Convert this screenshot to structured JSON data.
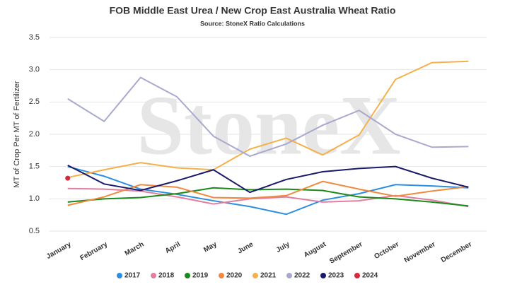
{
  "chart_data": {
    "type": "line",
    "title": "FOB Middle East Urea / New Crop East Australia Wheat Ratio",
    "subtitle": "Source: StoneX Ratio Calculations",
    "watermark": "StoneX",
    "y_label": "MT of Crop Per MT of Fertilizer",
    "categories": [
      "January",
      "February",
      "March",
      "April",
      "May",
      "June",
      "July",
      "August",
      "September",
      "October",
      "November",
      "December"
    ],
    "series": [
      {
        "name": "2017",
        "color": "#2b8ee0",
        "values": [
          1.5,
          1.35,
          1.15,
          1.07,
          0.97,
          0.88,
          0.76,
          0.98,
          1.08,
          1.22,
          1.2,
          1.17
        ]
      },
      {
        "name": "2018",
        "color": "#e07fa0",
        "values": [
          1.16,
          1.15,
          1.12,
          1.03,
          0.92,
          1.0,
          1.03,
          0.95,
          0.97,
          1.05,
          0.98,
          0.88
        ]
      },
      {
        "name": "2019",
        "color": "#1b8a1b",
        "values": [
          0.95,
          1.0,
          1.02,
          1.08,
          1.17,
          1.14,
          1.15,
          1.13,
          1.03,
          1.0,
          0.95,
          0.89
        ]
      },
      {
        "name": "2020",
        "color": "#f08a40",
        "values": [
          0.9,
          1.03,
          1.22,
          1.18,
          1.02,
          1.01,
          1.05,
          1.27,
          1.15,
          1.04,
          1.12,
          1.19
        ]
      },
      {
        "name": "2021",
        "color": "#f4b04a",
        "values": [
          1.33,
          1.45,
          1.56,
          1.48,
          1.45,
          1.77,
          1.94,
          1.68,
          1.99,
          2.85,
          3.11,
          3.13
        ]
      },
      {
        "name": "2022",
        "color": "#a9a9cf",
        "values": [
          2.55,
          2.2,
          2.88,
          2.58,
          1.97,
          1.66,
          1.85,
          2.14,
          2.37,
          2.0,
          1.8,
          1.81
        ]
      },
      {
        "name": "2023",
        "color": "#1a1a6b",
        "values": [
          1.52,
          1.23,
          1.13,
          1.28,
          1.45,
          1.1,
          1.3,
          1.42,
          1.47,
          1.5,
          1.32,
          1.18
        ]
      },
      {
        "name": "2024",
        "color": "#d4283c",
        "values": [
          1.32,
          null,
          null,
          null,
          null,
          null,
          null,
          null,
          null,
          null,
          null,
          null
        ]
      }
    ],
    "ylim": [
      0.5,
      3.5
    ],
    "yticks": [
      0.5,
      {
        "value": 1,
        "label": "1.0"
      },
      1.5,
      {
        "value": 2,
        "label": "2.0"
      },
      2.5,
      {
        "value": 3,
        "label": "3.0"
      },
      3.5
    ],
    "grid": true,
    "legend": "bottom"
  }
}
